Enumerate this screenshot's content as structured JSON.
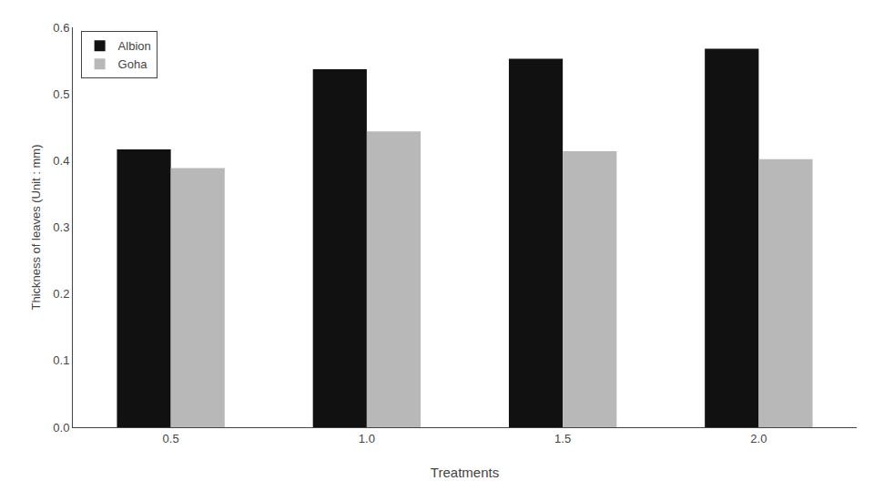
{
  "chart_data": {
    "type": "bar",
    "categories": [
      "0.5",
      "1.0",
      "1.5",
      "2.0"
    ],
    "series": [
      {
        "name": "Albion",
        "color": "#111111",
        "values": [
          0.417,
          0.537,
          0.553,
          0.568
        ]
      },
      {
        "name": "Goha",
        "color": "#b8b8b8",
        "values": [
          0.389,
          0.444,
          0.414,
          0.402
        ]
      }
    ],
    "x_label": "Treatments",
    "y_label": "Thickness of leaves (Unit : mm)",
    "ylim": [
      0.0,
      0.6
    ],
    "yticks": [
      {
        "value": 0.0,
        "label": "0.0"
      },
      0.1,
      0.2,
      0.3,
      0.4,
      0.5,
      0.6
    ],
    "grid": false,
    "legend": "upper left"
  }
}
